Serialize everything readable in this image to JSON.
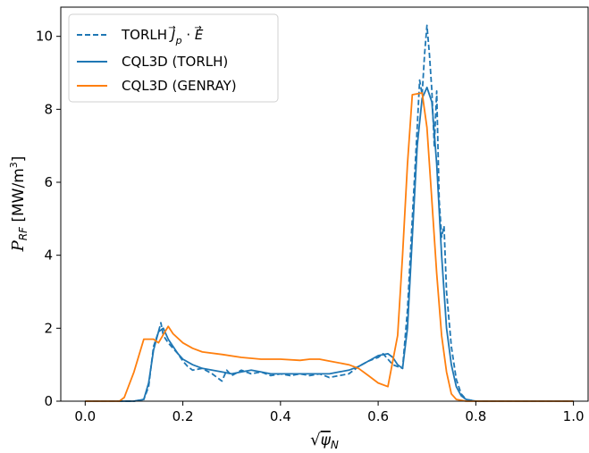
{
  "chart_data": {
    "type": "line",
    "xlabel": "√ψ_N",
    "ylabel": "P_RF [MW/m³]",
    "xlim": [
      -0.05,
      1.03
    ],
    "ylim": [
      0,
      10.8
    ],
    "xticks": [
      0.0,
      0.2,
      0.4,
      0.6,
      0.8,
      1.0
    ],
    "xtick_labels": [
      "0.0",
      "0.2",
      "0.4",
      "0.6",
      "0.8",
      "1.0"
    ],
    "yticks": [
      0,
      2,
      4,
      6,
      8,
      10
    ],
    "ytick_labels": [
      "0",
      "2",
      "4",
      "6",
      "8",
      "10"
    ],
    "legend_position": "top-left",
    "series": [
      {
        "name": "TORLH J_p · E",
        "color": "#1f77b4",
        "style": "dashed",
        "points": [
          [
            0.0,
            0
          ],
          [
            0.1,
            0
          ],
          [
            0.12,
            0.05
          ],
          [
            0.13,
            0.4
          ],
          [
            0.14,
            1.5
          ],
          [
            0.15,
            1.9
          ],
          [
            0.155,
            2.15
          ],
          [
            0.16,
            1.8
          ],
          [
            0.17,
            1.6
          ],
          [
            0.18,
            1.45
          ],
          [
            0.19,
            1.3
          ],
          [
            0.2,
            1.1
          ],
          [
            0.21,
            0.95
          ],
          [
            0.22,
            0.85
          ],
          [
            0.24,
            0.9
          ],
          [
            0.26,
            0.75
          ],
          [
            0.28,
            0.55
          ],
          [
            0.29,
            0.85
          ],
          [
            0.3,
            0.7
          ],
          [
            0.32,
            0.85
          ],
          [
            0.34,
            0.75
          ],
          [
            0.36,
            0.8
          ],
          [
            0.38,
            0.7
          ],
          [
            0.4,
            0.75
          ],
          [
            0.42,
            0.7
          ],
          [
            0.44,
            0.75
          ],
          [
            0.46,
            0.7
          ],
          [
            0.48,
            0.75
          ],
          [
            0.5,
            0.65
          ],
          [
            0.52,
            0.7
          ],
          [
            0.54,
            0.75
          ],
          [
            0.56,
            0.95
          ],
          [
            0.58,
            1.1
          ],
          [
            0.6,
            1.2
          ],
          [
            0.61,
            1.3
          ],
          [
            0.62,
            1.15
          ],
          [
            0.63,
            1.0
          ],
          [
            0.65,
            0.9
          ],
          [
            0.66,
            2.5
          ],
          [
            0.67,
            5.0
          ],
          [
            0.68,
            7.5
          ],
          [
            0.685,
            8.8
          ],
          [
            0.69,
            8.4
          ],
          [
            0.695,
            9.5
          ],
          [
            0.7,
            10.3
          ],
          [
            0.705,
            9.5
          ],
          [
            0.71,
            8.5
          ],
          [
            0.715,
            7.0
          ],
          [
            0.72,
            8.5
          ],
          [
            0.725,
            5.5
          ],
          [
            0.73,
            4.5
          ],
          [
            0.735,
            4.8
          ],
          [
            0.74,
            3.0
          ],
          [
            0.75,
            1.5
          ],
          [
            0.76,
            0.6
          ],
          [
            0.77,
            0.2
          ],
          [
            0.78,
            0.05
          ],
          [
            0.8,
            0
          ],
          [
            1.0,
            0
          ]
        ]
      },
      {
        "name": "CQL3D (TORLH)",
        "color": "#1f77b4",
        "style": "solid",
        "points": [
          [
            0.0,
            0
          ],
          [
            0.1,
            0
          ],
          [
            0.12,
            0.05
          ],
          [
            0.13,
            0.5
          ],
          [
            0.14,
            1.4
          ],
          [
            0.15,
            1.9
          ],
          [
            0.16,
            2.0
          ],
          [
            0.17,
            1.7
          ],
          [
            0.18,
            1.5
          ],
          [
            0.19,
            1.3
          ],
          [
            0.2,
            1.15
          ],
          [
            0.22,
            1.0
          ],
          [
            0.24,
            0.9
          ],
          [
            0.26,
            0.85
          ],
          [
            0.28,
            0.8
          ],
          [
            0.3,
            0.75
          ],
          [
            0.32,
            0.8
          ],
          [
            0.34,
            0.85
          ],
          [
            0.36,
            0.8
          ],
          [
            0.38,
            0.75
          ],
          [
            0.4,
            0.75
          ],
          [
            0.42,
            0.75
          ],
          [
            0.44,
            0.75
          ],
          [
            0.46,
            0.75
          ],
          [
            0.48,
            0.75
          ],
          [
            0.5,
            0.75
          ],
          [
            0.52,
            0.8
          ],
          [
            0.54,
            0.85
          ],
          [
            0.56,
            0.95
          ],
          [
            0.58,
            1.1
          ],
          [
            0.6,
            1.25
          ],
          [
            0.62,
            1.3
          ],
          [
            0.63,
            1.2
          ],
          [
            0.64,
            1.0
          ],
          [
            0.65,
            0.9
          ],
          [
            0.66,
            2.0
          ],
          [
            0.67,
            4.5
          ],
          [
            0.68,
            7.0
          ],
          [
            0.69,
            8.3
          ],
          [
            0.7,
            8.6
          ],
          [
            0.71,
            8.2
          ],
          [
            0.72,
            6.5
          ],
          [
            0.73,
            4.0
          ],
          [
            0.74,
            2.0
          ],
          [
            0.75,
            1.0
          ],
          [
            0.76,
            0.4
          ],
          [
            0.77,
            0.15
          ],
          [
            0.78,
            0.05
          ],
          [
            0.8,
            0
          ],
          [
            1.0,
            0
          ]
        ]
      },
      {
        "name": "CQL3D (GENRAY)",
        "color": "#ff7f0e",
        "style": "solid",
        "points": [
          [
            0.0,
            0
          ],
          [
            0.07,
            0
          ],
          [
            0.08,
            0.1
          ],
          [
            0.1,
            0.8
          ],
          [
            0.12,
            1.7
          ],
          [
            0.14,
            1.7
          ],
          [
            0.15,
            1.6
          ],
          [
            0.17,
            2.05
          ],
          [
            0.18,
            1.85
          ],
          [
            0.2,
            1.6
          ],
          [
            0.22,
            1.45
          ],
          [
            0.24,
            1.35
          ],
          [
            0.28,
            1.28
          ],
          [
            0.32,
            1.2
          ],
          [
            0.36,
            1.15
          ],
          [
            0.4,
            1.15
          ],
          [
            0.44,
            1.12
          ],
          [
            0.46,
            1.15
          ],
          [
            0.48,
            1.15
          ],
          [
            0.5,
            1.1
          ],
          [
            0.54,
            1.0
          ],
          [
            0.56,
            0.9
          ],
          [
            0.58,
            0.7
          ],
          [
            0.6,
            0.5
          ],
          [
            0.62,
            0.4
          ],
          [
            0.64,
            1.8
          ],
          [
            0.65,
            4.0
          ],
          [
            0.66,
            6.5
          ],
          [
            0.67,
            8.4
          ],
          [
            0.69,
            8.45
          ],
          [
            0.7,
            7.5
          ],
          [
            0.71,
            5.5
          ],
          [
            0.72,
            3.5
          ],
          [
            0.73,
            1.8
          ],
          [
            0.74,
            0.8
          ],
          [
            0.75,
            0.2
          ],
          [
            0.76,
            0.05
          ],
          [
            0.78,
            0
          ],
          [
            1.0,
            0
          ]
        ]
      }
    ]
  }
}
